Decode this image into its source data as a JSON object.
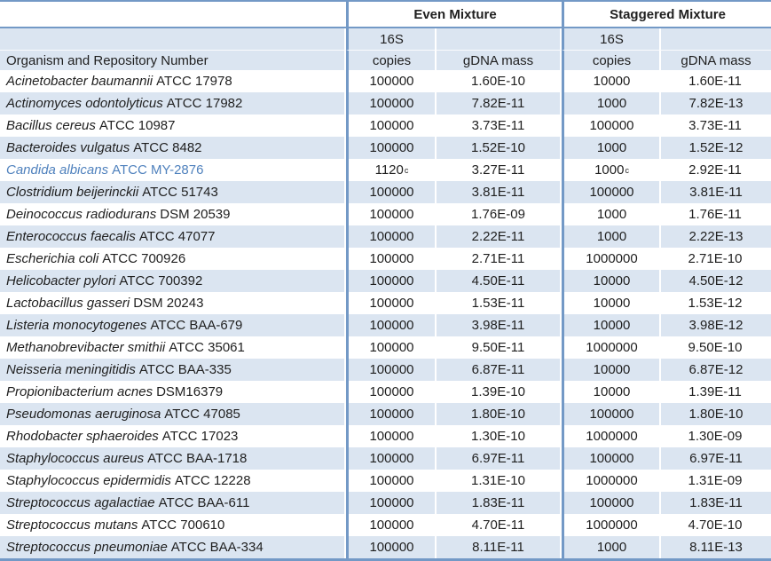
{
  "colors": {
    "stripe": "#DBE5F1",
    "border": "#7399C6",
    "highlight_text": "#4F81BD",
    "text": "#1F1F1F"
  },
  "header": {
    "even_mixture": "Even Mixture",
    "staggered_mixture": "Staggered Mixture",
    "organism_col": "Organism and Repository Number",
    "copies_line1": "16S",
    "copies_line2": "copies",
    "gdna_mass": "gDNA mass"
  },
  "rows": [
    {
      "species": "Acinetobacter baumannii",
      "strain": "ATCC 17978",
      "even_copies": "100000",
      "even_copies_sup": "",
      "even_gdna": "1.60E-10",
      "stag_copies": "10000",
      "stag_copies_sup": "",
      "stag_gdna": "1.60E-11",
      "highlighted": false
    },
    {
      "species": "Actinomyces odontolyticus",
      "strain": "ATCC 17982",
      "even_copies": "100000",
      "even_copies_sup": "",
      "even_gdna": "7.82E-11",
      "stag_copies": "1000",
      "stag_copies_sup": "",
      "stag_gdna": "7.82E-13",
      "highlighted": false
    },
    {
      "species": "Bacillus cereus",
      "strain": "ATCC 10987",
      "even_copies": "100000",
      "even_copies_sup": "",
      "even_gdna": "3.73E-11",
      "stag_copies": "100000",
      "stag_copies_sup": "",
      "stag_gdna": "3.73E-11",
      "highlighted": false
    },
    {
      "species": "Bacteroides vulgatus",
      "strain": "ATCC 8482",
      "even_copies": "100000",
      "even_copies_sup": "",
      "even_gdna": "1.52E-10",
      "stag_copies": "1000",
      "stag_copies_sup": "",
      "stag_gdna": "1.52E-12",
      "highlighted": false
    },
    {
      "species": "Candida albicans",
      "strain": "ATCC MY-2876",
      "even_copies": "1120",
      "even_copies_sup": "c",
      "even_gdna": "3.27E-11",
      "stag_copies": "1000",
      "stag_copies_sup": "c",
      "stag_gdna": "2.92E-11",
      "highlighted": true
    },
    {
      "species": "Clostridium beijerinckii",
      "strain": "ATCC 51743",
      "even_copies": "100000",
      "even_copies_sup": "",
      "even_gdna": "3.81E-11",
      "stag_copies": "100000",
      "stag_copies_sup": "",
      "stag_gdna": "3.81E-11",
      "highlighted": false
    },
    {
      "species": "Deinococcus radiodurans",
      "strain": "DSM 20539",
      "even_copies": "100000",
      "even_copies_sup": "",
      "even_gdna": "1.76E-09",
      "stag_copies": "1000",
      "stag_copies_sup": "",
      "stag_gdna": "1.76E-11",
      "highlighted": false
    },
    {
      "species": "Enterococcus faecalis",
      "strain": "ATCC 47077",
      "even_copies": "100000",
      "even_copies_sup": "",
      "even_gdna": "2.22E-11",
      "stag_copies": "1000",
      "stag_copies_sup": "",
      "stag_gdna": "2.22E-13",
      "highlighted": false
    },
    {
      "species": "Escherichia coli",
      "strain": "ATCC 700926",
      "even_copies": "100000",
      "even_copies_sup": "",
      "even_gdna": "2.71E-11",
      "stag_copies": "1000000",
      "stag_copies_sup": "",
      "stag_gdna": "2.71E-10",
      "highlighted": false
    },
    {
      "species": "Helicobacter pylori",
      "strain": "ATCC 700392",
      "even_copies": "100000",
      "even_copies_sup": "",
      "even_gdna": "4.50E-11",
      "stag_copies": "10000",
      "stag_copies_sup": "",
      "stag_gdna": "4.50E-12",
      "highlighted": false
    },
    {
      "species": "Lactobacillus gasseri",
      "strain": "DSM 20243",
      "even_copies": "100000",
      "even_copies_sup": "",
      "even_gdna": "1.53E-11",
      "stag_copies": "10000",
      "stag_copies_sup": "",
      "stag_gdna": "1.53E-12",
      "highlighted": false
    },
    {
      "species": "Listeria monocytogenes",
      "strain": "ATCC BAA-679",
      "even_copies": "100000",
      "even_copies_sup": "",
      "even_gdna": "3.98E-11",
      "stag_copies": "10000",
      "stag_copies_sup": "",
      "stag_gdna": "3.98E-12",
      "highlighted": false
    },
    {
      "species": "Methanobrevibacter smithii",
      "strain": "ATCC 35061",
      "even_copies": "100000",
      "even_copies_sup": "",
      "even_gdna": "9.50E-11",
      "stag_copies": "1000000",
      "stag_copies_sup": "",
      "stag_gdna": "9.50E-10",
      "highlighted": false
    },
    {
      "species": "Neisseria meningitidis",
      "strain": "ATCC BAA-335",
      "even_copies": "100000",
      "even_copies_sup": "",
      "even_gdna": "6.87E-11",
      "stag_copies": "10000",
      "stag_copies_sup": "",
      "stag_gdna": "6.87E-12",
      "highlighted": false
    },
    {
      "species": "Propionibacterium acnes",
      "strain": "DSM16379",
      "even_copies": "100000",
      "even_copies_sup": "",
      "even_gdna": "1.39E-10",
      "stag_copies": "10000",
      "stag_copies_sup": "",
      "stag_gdna": "1.39E-11",
      "highlighted": false
    },
    {
      "species": "Pseudomonas aeruginosa",
      "strain": "ATCC 47085",
      "even_copies": "100000",
      "even_copies_sup": "",
      "even_gdna": "1.80E-10",
      "stag_copies": "100000",
      "stag_copies_sup": "",
      "stag_gdna": "1.80E-10",
      "highlighted": false
    },
    {
      "species": "Rhodobacter sphaeroides",
      "strain": "ATCC 17023",
      "even_copies": "100000",
      "even_copies_sup": "",
      "even_gdna": "1.30E-10",
      "stag_copies": "1000000",
      "stag_copies_sup": "",
      "stag_gdna": "1.30E-09",
      "highlighted": false
    },
    {
      "species": "Staphylococcus aureus",
      "strain": "ATCC BAA-1718",
      "even_copies": "100000",
      "even_copies_sup": "",
      "even_gdna": "6.97E-11",
      "stag_copies": "100000",
      "stag_copies_sup": "",
      "stag_gdna": "6.97E-11",
      "highlighted": false
    },
    {
      "species": "Staphylococcus epidermidis",
      "strain": "ATCC 12228",
      "even_copies": "100000",
      "even_copies_sup": "",
      "even_gdna": "1.31E-10",
      "stag_copies": "1000000",
      "stag_copies_sup": "",
      "stag_gdna": "1.31E-09",
      "highlighted": false
    },
    {
      "species": "Streptococcus agalactiae",
      "strain": "ATCC BAA-611",
      "even_copies": "100000",
      "even_copies_sup": "",
      "even_gdna": "1.83E-11",
      "stag_copies": "100000",
      "stag_copies_sup": "",
      "stag_gdna": "1.83E-11",
      "highlighted": false
    },
    {
      "species": "Streptococcus mutans",
      "strain": "ATCC 700610",
      "even_copies": "100000",
      "even_copies_sup": "",
      "even_gdna": "4.70E-11",
      "stag_copies": "1000000",
      "stag_copies_sup": "",
      "stag_gdna": "4.70E-10",
      "highlighted": false
    },
    {
      "species": "Streptococcus pneumoniae",
      "strain": "ATCC BAA-334",
      "even_copies": "100000",
      "even_copies_sup": "",
      "even_gdna": "8.11E-11",
      "stag_copies": "1000",
      "stag_copies_sup": "",
      "stag_gdna": "8.11E-13",
      "highlighted": false
    }
  ]
}
